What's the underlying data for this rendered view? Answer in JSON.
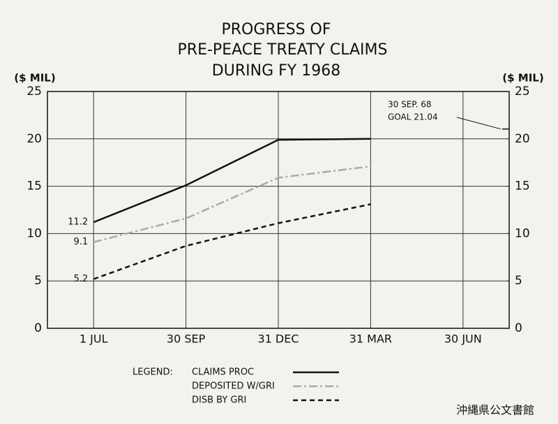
{
  "chart_data": {
    "type": "line",
    "title": [
      "PROGRESS OF",
      "PRE-PEACE TREATY CLAIMS",
      "DURING FY 1968"
    ],
    "ylabel": "($ MIL)",
    "y2label": "($ MIL)",
    "categories": [
      "1 JUL",
      "30 SEP",
      "31 DEC",
      "31 MAR",
      "30 JUN"
    ],
    "series": [
      {
        "name": "CLAIMS PROC",
        "color": "#111111",
        "dash": "solid",
        "values": [
          11.2,
          15.1,
          19.9,
          20.0,
          null
        ]
      },
      {
        "name": "DEPOSITED W/GRI",
        "color": "#aaaaaa",
        "dash": "dashdot",
        "values": [
          9.1,
          11.6,
          15.9,
          17.1,
          null
        ]
      },
      {
        "name": "DISB BY GRI",
        "color": "#111111",
        "dash": "dashed",
        "values": [
          5.2,
          8.7,
          11.1,
          13.1,
          null
        ]
      }
    ],
    "ylim": [
      0,
      25
    ],
    "yticks": [
      0,
      5,
      10,
      15,
      20,
      25
    ],
    "y2lim": [
      0,
      25
    ],
    "y2ticks": [
      0,
      5,
      10,
      15,
      20,
      25
    ],
    "grid": true,
    "legend_title": "LEGEND:",
    "goal": {
      "value": 21.04,
      "label": [
        "30 SEP. 68",
        "GOAL 21.04"
      ]
    },
    "source": "沖縄県公文書館"
  }
}
